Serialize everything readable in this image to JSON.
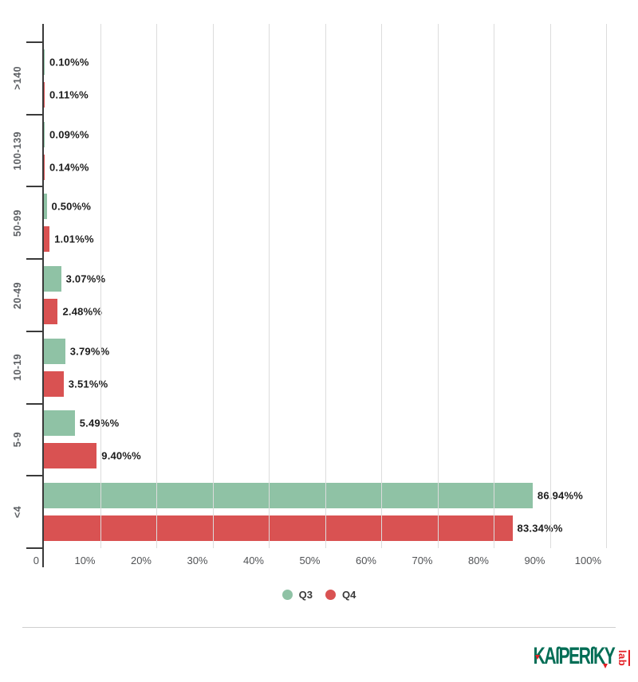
{
  "chart_data": {
    "type": "bar",
    "orientation": "horizontal",
    "title": "",
    "xlabel": "",
    "ylabel": "",
    "grid": true,
    "legend_position": "bottom-center",
    "categories": [
      ">140",
      "100-139",
      "50-99",
      "20-49",
      "10-19",
      "5-9",
      "<4"
    ],
    "series": [
      {
        "name": "Q3",
        "color": "#8fc2a5",
        "values": [
          0.1,
          0.09,
          0.5,
          3.07,
          3.79,
          5.49,
          86.94
        ],
        "labels": [
          "0.10%%",
          "0.09%%",
          "0.50%%",
          "3.07%%",
          "3.79%%",
          "5.49%%",
          "86.94%%"
        ]
      },
      {
        "name": "Q4",
        "color": "#d95252",
        "values": [
          0.11,
          0.14,
          1.01,
          2.48,
          3.51,
          9.4,
          83.34
        ],
        "labels": [
          "0.11%%",
          "0.14%%",
          "1.01%%",
          "2.48%%",
          "3.51%%",
          "9.40%%",
          "83.34%%"
        ]
      }
    ],
    "x_axis": {
      "min": 0,
      "max": 100,
      "tick_step": 10,
      "tick_labels": [
        "0",
        "10%",
        "20%",
        "30%",
        "40%",
        "50%",
        "60%",
        "70%",
        "80%",
        "90%",
        "100%"
      ]
    }
  },
  "legend": {
    "items": [
      {
        "label": "Q3",
        "color": "#8fc2a5"
      },
      {
        "label": "Q4",
        "color": "#d95252"
      }
    ]
  },
  "branding": {
    "logo_text": "KASPERSKY",
    "logo_text_stylized": "KAſPERſKY",
    "logo_sub": "lab",
    "logo_color": "#006d55",
    "logo_accent": "#e31e24"
  },
  "colors": {
    "background": "#ffffff",
    "gridline": "#dcdcdc",
    "axis": "#3a3a3a",
    "bar_green": "#8fc2a5",
    "bar_red": "#d95252",
    "data_label": "#1c1c1c",
    "category_label": "#5d6064",
    "x_axis_label": "#515356",
    "separator": "#cfcfcf"
  }
}
